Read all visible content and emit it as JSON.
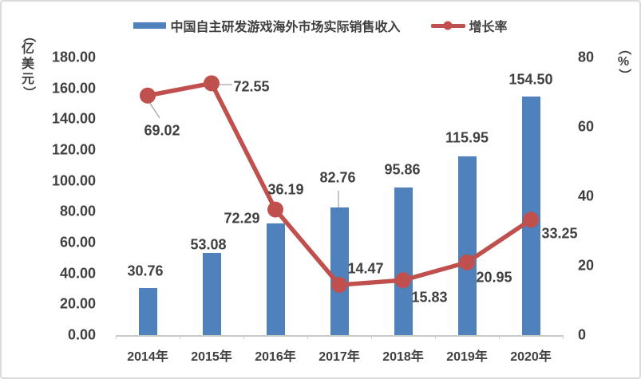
{
  "chart_data": {
    "type": "combo",
    "title": "",
    "categories": [
      "2014年",
      "2015年",
      "2016年",
      "2017年",
      "2018年",
      "2019年",
      "2020年"
    ],
    "series": [
      {
        "name": "中国自主研发游戏海外市场实际销售收入",
        "type": "bar",
        "axis": "left",
        "color": "#4F81BD",
        "values": [
          30.76,
          53.08,
          72.29,
          82.76,
          95.86,
          115.95,
          154.5
        ],
        "data_labels": [
          "30.76",
          "53.08",
          "72.29",
          "82.76",
          "95.86",
          "115.95",
          "154.50"
        ]
      },
      {
        "name": "增长率",
        "type": "line",
        "axis": "right",
        "color": "#C0504D",
        "values": [
          69.02,
          72.55,
          36.19,
          14.47,
          15.83,
          20.95,
          33.25
        ],
        "data_labels": [
          "69.02",
          "72.55",
          "36.19",
          "14.47",
          "15.83",
          "20.95",
          "33.25"
        ]
      }
    ],
    "left_axis": {
      "title": "（亿美元）",
      "min": 0,
      "max": 180,
      "step": 20,
      "tick_labels": [
        "180.00",
        "160.00",
        "140.00",
        "120.00",
        "100.00",
        "80.00",
        "60.00",
        "40.00",
        "20.00",
        "0.00"
      ]
    },
    "right_axis": {
      "title": "（%）",
      "min": 0,
      "max": 80,
      "step": 20,
      "tick_labels": [
        "80",
        "60",
        "40",
        "20",
        "0"
      ]
    },
    "legend_position": "top",
    "grid": false
  },
  "colors": {
    "bar": "#4F81BD",
    "line": "#C0504D",
    "text": "#404040",
    "axis_line": "#C9C9C9",
    "leader_line": "#A6A6A6",
    "border": "#DBDBDB",
    "background": "#FFFFFF"
  }
}
